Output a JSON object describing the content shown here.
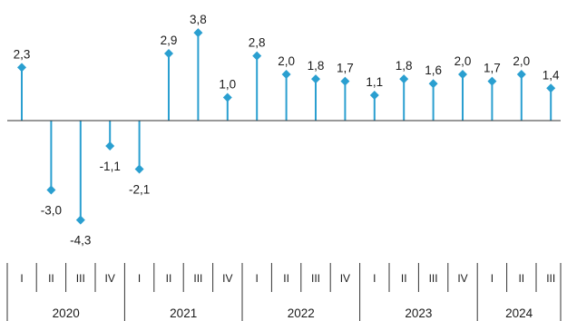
{
  "colors": {
    "accent": "#2a9fd0",
    "axis": "#333333",
    "text": "#1a1a1a"
  },
  "chart_data": {
    "type": "lollipop",
    "title": "",
    "xlabel": "",
    "ylabel": "",
    "ylim": [
      -5,
      4.5
    ],
    "grid": false,
    "legend": "none",
    "decimal_separator": ",",
    "categories": [
      "I",
      "II",
      "III",
      "IV",
      "I",
      "II",
      "III",
      "IV",
      "I",
      "II",
      "III",
      "IV",
      "I",
      "II",
      "III",
      "IV",
      "I",
      "II",
      "III"
    ],
    "years": [
      {
        "label": "2020",
        "quarters": 4
      },
      {
        "label": "2021",
        "quarters": 4
      },
      {
        "label": "2022",
        "quarters": 4
      },
      {
        "label": "2023",
        "quarters": 4
      },
      {
        "label": "2024",
        "quarters": 3
      }
    ],
    "values": [
      2.3,
      -3.0,
      -4.3,
      -1.1,
      -2.1,
      2.9,
      3.8,
      1.0,
      2.8,
      2.0,
      1.8,
      1.7,
      1.1,
      1.8,
      1.6,
      2.0,
      1.7,
      2.0,
      1.4
    ],
    "value_labels": [
      "2,3",
      "-3,0",
      "-4,3",
      "-1,1",
      "-2,1",
      "2,9",
      "3,8",
      "1,0",
      "2,8",
      "2,0",
      "1,8",
      "1,7",
      "1,1",
      "1,8",
      "1,6",
      "2,0",
      "1,7",
      "2,0",
      "1,4"
    ]
  }
}
